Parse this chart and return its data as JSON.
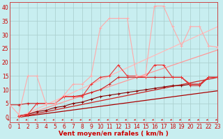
{
  "bg_color": "#c8eef0",
  "grid_color": "#a8cccc",
  "xlabel": "Vent moyen/en rafales ( km/h )",
  "xlim": [
    0,
    23
  ],
  "ylim": [
    -2,
    42
  ],
  "yticks": [
    0,
    5,
    10,
    15,
    20,
    25,
    30,
    35,
    40
  ],
  "xticks": [
    0,
    1,
    2,
    3,
    4,
    5,
    6,
    7,
    8,
    9,
    10,
    11,
    12,
    13,
    14,
    15,
    16,
    17,
    18,
    19,
    20,
    21,
    22,
    23
  ],
  "reg_lines": [
    {
      "x": [
        1,
        23
      ],
      "y": [
        0.0,
        9.6
      ],
      "color": "#aa0000",
      "lw": 0.9
    },
    {
      "x": [
        1,
        23
      ],
      "y": [
        0.0,
        14.5
      ],
      "color": "#cc2222",
      "lw": 0.9
    },
    {
      "x": [
        1,
        23
      ],
      "y": [
        0.0,
        24.5
      ],
      "color": "#ff9999",
      "lw": 0.9
    },
    {
      "x": [
        1,
        23
      ],
      "y": [
        0.0,
        33.0
      ],
      "color": "#ffbbbb",
      "lw": 0.9
    }
  ],
  "data_lines": [
    {
      "x": [
        1,
        2,
        3,
        4,
        5,
        6,
        7,
        8,
        9,
        10,
        11,
        12,
        13,
        14,
        15,
        16,
        17,
        18,
        19,
        20,
        21,
        22,
        23
      ],
      "y": [
        0.5,
        1.0,
        2.0,
        2.5,
        3.5,
        4.0,
        5.0,
        5.5,
        6.5,
        7.5,
        8.0,
        8.5,
        9.0,
        9.5,
        10.0,
        10.5,
        11.0,
        11.5,
        11.5,
        12.0,
        12.0,
        14.5,
        14.5
      ],
      "color": "#880000",
      "lw": 0.8,
      "ms": 2.5,
      "marker": "+"
    },
    {
      "x": [
        0,
        1,
        2,
        3,
        4,
        5,
        6,
        7,
        8,
        9,
        10,
        11,
        12,
        13,
        14,
        15,
        16,
        17,
        18,
        19,
        20,
        21,
        22,
        23
      ],
      "y": [
        4.5,
        4.5,
        5.0,
        5.0,
        5.0,
        5.0,
        7.5,
        7.5,
        8.0,
        9.0,
        10.0,
        12.0,
        14.5,
        14.5,
        14.5,
        14.5,
        14.5,
        14.5,
        14.5,
        14.5,
        11.5,
        11.5,
        14.5,
        14.5
      ],
      "color": "#cc2222",
      "lw": 0.8,
      "ms": 2.5,
      "marker": "+"
    },
    {
      "x": [
        1,
        2,
        3,
        4,
        5,
        6,
        7,
        8,
        9,
        10,
        11,
        12,
        13,
        14,
        15,
        16,
        17,
        18,
        19,
        20,
        21,
        22,
        23
      ],
      "y": [
        0.5,
        1.0,
        5.0,
        5.0,
        5.0,
        7.5,
        7.5,
        7.5,
        12.0,
        14.5,
        15.0,
        19.0,
        15.0,
        15.0,
        14.5,
        19.0,
        19.0,
        14.5,
        14.5,
        12.0,
        12.0,
        14.5,
        14.5
      ],
      "color": "#ee3333",
      "lw": 0.8,
      "ms": 2.5,
      "marker": "+"
    },
    {
      "x": [
        0,
        1,
        2,
        3,
        4,
        5,
        6,
        7,
        8,
        9,
        10,
        11,
        12,
        13,
        14,
        15,
        16,
        17,
        18,
        19,
        20,
        21,
        22,
        23
      ],
      "y": [
        4.5,
        1.0,
        15.0,
        15.0,
        5.0,
        5.0,
        8.0,
        12.0,
        12.0,
        15.0,
        32.5,
        36.0,
        36.0,
        36.0,
        15.0,
        15.0,
        40.5,
        40.5,
        33.0,
        26.0,
        33.0,
        33.0,
        26.0,
        25.5
      ],
      "color": "#ffaaaa",
      "lw": 0.8,
      "ms": 2.5,
      "marker": "+"
    }
  ],
  "arrow_color": "#cc0000",
  "xlabel_color": "#cc0000",
  "xlabel_fontsize": 6.5,
  "tick_fontsize": 5.5,
  "tick_color": "#cc0000",
  "spine_color": "#cc4444"
}
